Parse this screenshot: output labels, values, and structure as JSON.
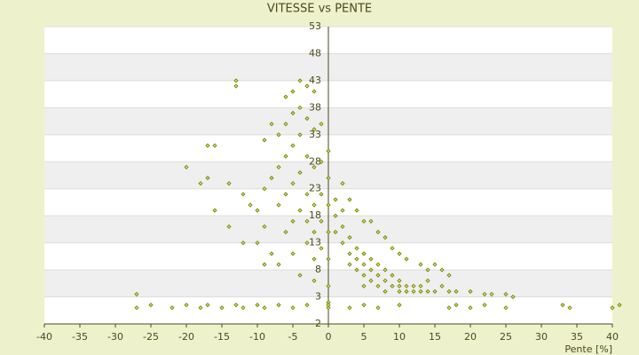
{
  "chart_data": {
    "type": "scatter",
    "title": "VITESSE vs PENTE",
    "x_label": "Pente [%]",
    "xlim": [
      -40,
      40
    ],
    "xticks": [
      -40,
      -35,
      -30,
      -25,
      -20,
      -15,
      -10,
      -5,
      0,
      5,
      10,
      15,
      20,
      25,
      30,
      35,
      40
    ],
    "ylim": [
      -2,
      53
    ],
    "yticks": [
      53,
      48,
      43,
      38,
      33,
      28,
      23,
      18,
      13,
      8,
      3,
      -2
    ],
    "grid": true,
    "color": "#6b7a00",
    "x": [
      -27,
      -25,
      -22,
      -20,
      -18,
      -17,
      -15,
      -13,
      -12,
      -10,
      -9,
      -7,
      -5,
      -3,
      0,
      0,
      0,
      3,
      5,
      7,
      10,
      17,
      18,
      20,
      22,
      25,
      33,
      34,
      40,
      41,
      -27,
      -13,
      -13,
      -20,
      -17,
      -16,
      -18,
      -17,
      -14,
      -12,
      -16,
      -14,
      -11,
      -10,
      -9,
      -12,
      -8,
      -10,
      -6,
      -5,
      -4,
      -3,
      -2,
      -4,
      -5,
      -6,
      -7,
      -8,
      -9,
      -3,
      -2,
      -1,
      -4,
      -5,
      -6,
      -7,
      -8,
      -9,
      -3,
      -2,
      -1,
      -4,
      -5,
      -6,
      -7,
      -3,
      -2,
      -1,
      -4,
      -5,
      -6,
      -3,
      -2,
      -1,
      0,
      0,
      0,
      0,
      0,
      0,
      -1,
      -2,
      -3,
      -5,
      -7,
      -4,
      -2,
      -9,
      1,
      1,
      2,
      2,
      3,
      3,
      3,
      4,
      4,
      4,
      5,
      5,
      5,
      5,
      6,
      6,
      6,
      7,
      7,
      7,
      8,
      8,
      8,
      9,
      9,
      10,
      10,
      10,
      11,
      11,
      12,
      12,
      13,
      13,
      14,
      14,
      15,
      16,
      17,
      18,
      20,
      22,
      23,
      25,
      26,
      2,
      3,
      4,
      5,
      6,
      7,
      8,
      9,
      10,
      11,
      13,
      14,
      17,
      1,
      2,
      15,
      16
    ],
    "values": [
      1,
      1.5,
      1,
      1.5,
      1,
      1.5,
      1,
      1.5,
      1,
      1.5,
      1,
      1.5,
      1,
      1.5,
      1,
      2,
      1.5,
      1,
      1.5,
      1,
      1.5,
      1,
      1.5,
      1,
      1.5,
      1,
      1.5,
      1,
      1,
      1.5,
      3.5,
      43,
      42,
      27,
      31,
      31,
      24,
      25,
      24,
      22,
      19,
      16,
      20,
      19,
      16,
      13,
      11,
      13,
      40,
      41,
      43,
      42,
      41,
      38,
      37,
      35,
      33,
      35,
      32,
      36,
      34,
      35,
      33,
      31,
      29,
      27,
      25,
      23,
      29,
      27,
      28,
      26,
      24,
      22,
      20,
      22,
      20,
      22,
      19,
      17,
      15,
      17,
      15,
      17,
      30,
      25,
      20,
      15,
      10,
      5,
      12,
      10,
      13,
      11,
      9,
      7,
      6,
      9,
      18,
      15,
      16,
      13,
      14,
      11,
      9,
      12,
      10,
      8,
      11,
      9,
      7,
      5,
      10,
      8,
      6,
      9,
      7,
      5,
      8,
      6,
      4,
      7,
      5,
      6,
      5,
      4,
      5,
      4,
      5,
      4,
      4,
      5,
      6,
      4,
      4,
      5,
      4,
      4,
      4,
      3.5,
      3.5,
      3.5,
      3,
      24,
      21,
      19,
      17,
      17,
      15,
      14,
      12,
      11,
      10,
      9,
      8,
      7,
      21,
      19,
      9,
      8
    ]
  }
}
